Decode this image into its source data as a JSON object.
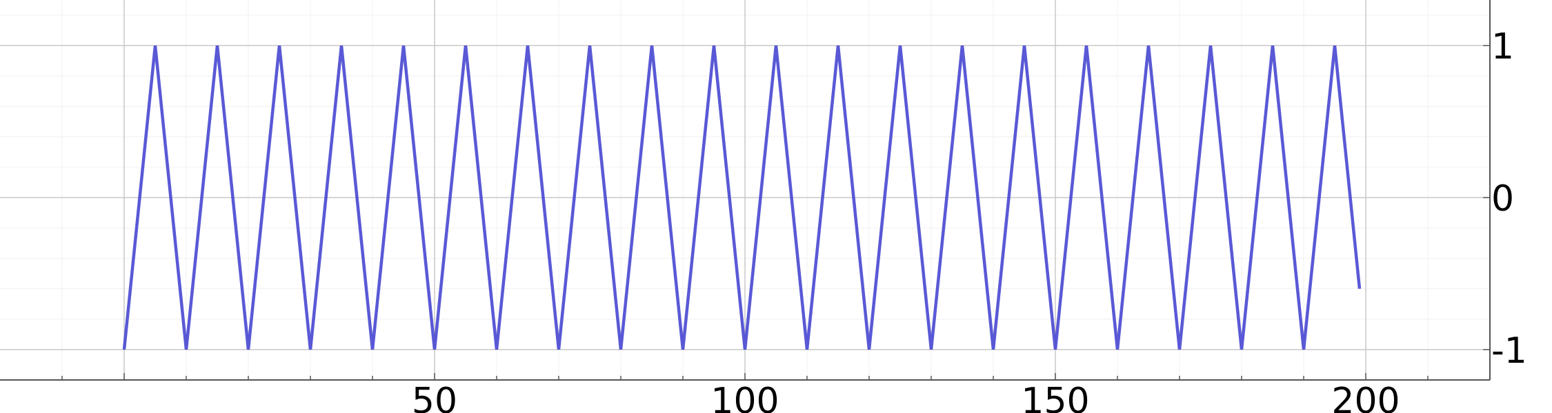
{
  "chart_data": {
    "type": "line",
    "title": "",
    "xlabel": "",
    "ylabel": "",
    "xlim": [
      -20,
      220
    ],
    "ylim": [
      -1.2,
      1.3
    ],
    "x_ticks": [
      50,
      100,
      150,
      200
    ],
    "x_tick_labels": [
      "50",
      "100",
      "150",
      "200"
    ],
    "y_ticks": [
      1,
      0,
      -1
    ],
    "y_tick_labels": [
      "1",
      "0",
      "-1"
    ],
    "y_axis_side": "right",
    "grid": true,
    "series": [
      {
        "color": "#4747d1",
        "x": [
          0,
          5,
          10,
          15,
          20,
          25,
          30,
          35,
          40,
          45,
          50,
          55,
          60,
          65,
          70,
          75,
          80,
          85,
          90,
          95,
          100,
          105,
          110,
          115,
          120,
          125,
          130,
          135,
          140,
          145,
          150,
          155,
          160,
          165,
          170,
          175,
          180,
          185,
          190,
          195,
          199
        ],
        "y": [
          -1,
          1,
          -1,
          1,
          -1,
          1,
          -1,
          1,
          -1,
          1,
          -1,
          1,
          -1,
          1,
          -1,
          1,
          -1,
          1,
          -1,
          1,
          -1,
          1,
          -1,
          1,
          -1,
          1,
          -1,
          1,
          -1,
          1,
          -1,
          1,
          -1,
          1,
          -1,
          1,
          -1,
          1,
          -1,
          1,
          -0.6
        ]
      }
    ]
  }
}
